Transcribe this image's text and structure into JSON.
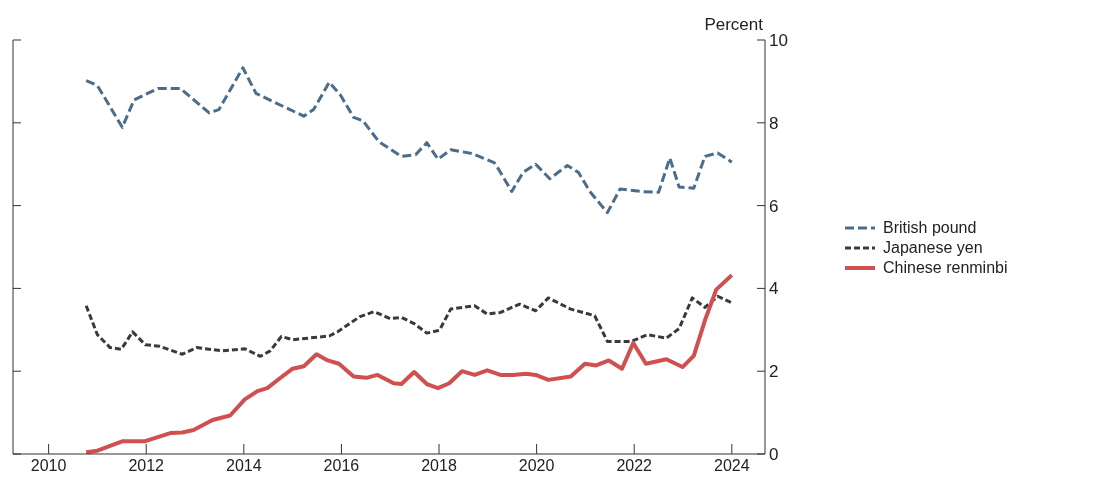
{
  "chart_data": {
    "type": "line",
    "ylabel": "Percent",
    "xlim": [
      2009.27,
      2024.68
    ],
    "xticks": [
      2010,
      2012,
      2014,
      2016,
      2018,
      2020,
      2022,
      2024
    ],
    "ylim": [
      0,
      10
    ],
    "yticks": [
      0,
      2,
      4,
      6,
      8,
      10
    ],
    "grid": false,
    "legend": "right",
    "marker": "none",
    "series": [
      {
        "name": "British pound",
        "color": "#4a6d8c",
        "line_style": "dashed",
        "x": [
          2010.77,
          2011.0,
          2011.51,
          2011.75,
          2012.24,
          2012.7,
          2013.29,
          2013.49,
          2013.98,
          2014.25,
          2014.8,
          2015.23,
          2015.43,
          2015.75,
          2015.98,
          2016.25,
          2016.44,
          2016.77,
          2017.23,
          2017.52,
          2017.75,
          2017.98,
          2018.24,
          2018.67,
          2019.13,
          2019.22,
          2019.49,
          2019.72,
          2019.98,
          2020.27,
          2020.63,
          2020.86,
          2021.09,
          2021.45,
          2021.71,
          2022.14,
          2022.5,
          2022.73,
          2022.92,
          2023.22,
          2023.45,
          2023.71,
          2024.0
        ],
        "values": [
          9.02,
          8.9,
          7.89,
          8.55,
          8.83,
          8.83,
          8.24,
          8.32,
          9.33,
          8.71,
          8.4,
          8.16,
          8.32,
          8.98,
          8.67,
          8.13,
          8.05,
          7.54,
          7.19,
          7.23,
          7.52,
          7.12,
          7.35,
          7.26,
          7.04,
          6.88,
          6.34,
          6.8,
          7.0,
          6.65,
          6.97,
          6.8,
          6.34,
          5.83,
          6.4,
          6.34,
          6.32,
          7.15,
          6.45,
          6.42,
          7.19,
          7.27,
          7.05
        ]
      },
      {
        "name": "Japanese yen",
        "color": "#3a3a3a",
        "line_style": "dotted",
        "x": [
          2010.77,
          2011.0,
          2011.26,
          2011.49,
          2011.72,
          2011.98,
          2012.28,
          2012.74,
          2013.03,
          2013.56,
          2014.02,
          2014.34,
          2014.54,
          2014.77,
          2015.0,
          2015.75,
          2015.92,
          2016.38,
          2016.67,
          2017.0,
          2017.23,
          2017.49,
          2017.75,
          2018.01,
          2018.24,
          2018.73,
          2018.99,
          2019.26,
          2019.65,
          2019.98,
          2020.24,
          2020.7,
          2021.19,
          2021.45,
          2021.94,
          2022.27,
          2022.66,
          2022.92,
          2023.19,
          2023.45,
          2023.71,
          2024.0
        ],
        "values": [
          3.58,
          2.88,
          2.57,
          2.53,
          2.95,
          2.64,
          2.6,
          2.41,
          2.57,
          2.49,
          2.54,
          2.36,
          2.49,
          2.84,
          2.76,
          2.85,
          2.95,
          3.32,
          3.44,
          3.27,
          3.3,
          3.15,
          2.92,
          2.99,
          3.5,
          3.58,
          3.38,
          3.42,
          3.62,
          3.46,
          3.77,
          3.5,
          3.34,
          2.72,
          2.72,
          2.88,
          2.8,
          3.03,
          3.77,
          3.54,
          3.81,
          3.65
        ]
      },
      {
        "name": "Chinese renminbi",
        "color": "#d0504f",
        "line_style": "solid",
        "x": [
          2010.77,
          2011.0,
          2011.52,
          2011.98,
          2012.51,
          2012.74,
          2012.97,
          2013.36,
          2013.72,
          2014.02,
          2014.28,
          2014.48,
          2014.74,
          2015.0,
          2015.23,
          2015.49,
          2015.72,
          2015.95,
          2016.25,
          2016.51,
          2016.74,
          2017.07,
          2017.23,
          2017.49,
          2017.75,
          2017.98,
          2018.21,
          2018.47,
          2018.73,
          2018.99,
          2019.26,
          2019.52,
          2019.78,
          2019.98,
          2020.24,
          2020.7,
          2020.99,
          2021.22,
          2021.48,
          2021.75,
          2021.98,
          2022.24,
          2022.66,
          2022.99,
          2023.22,
          2023.45,
          2023.68,
          2024.0
        ],
        "values": [
          0.04,
          0.08,
          0.31,
          0.31,
          0.51,
          0.52,
          0.58,
          0.82,
          0.93,
          1.32,
          1.52,
          1.59,
          1.83,
          2.06,
          2.12,
          2.41,
          2.26,
          2.18,
          1.87,
          1.84,
          1.91,
          1.71,
          1.69,
          1.98,
          1.69,
          1.59,
          1.71,
          2.0,
          1.91,
          2.02,
          1.91,
          1.91,
          1.94,
          1.91,
          1.79,
          1.87,
          2.18,
          2.14,
          2.26,
          2.06,
          2.68,
          2.18,
          2.29,
          2.1,
          2.37,
          3.23,
          3.97,
          4.32
        ]
      }
    ]
  }
}
